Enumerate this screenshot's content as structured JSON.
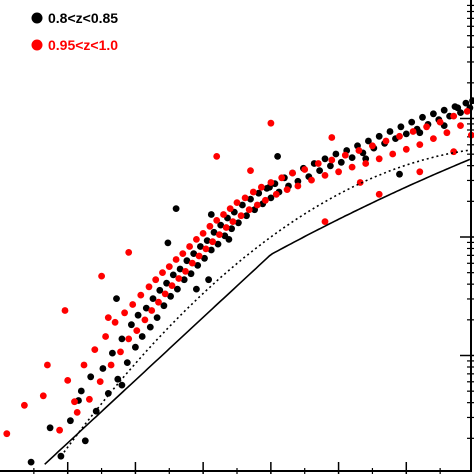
{
  "chart_data": {
    "type": "scatter",
    "title": "",
    "xlabel": "",
    "ylabel": "",
    "xlim": [
      8.5,
      12.0
    ],
    "ylim": [
      -3.0,
      1.0
    ],
    "ylog_decade_ticks": [
      -2,
      -1,
      0
    ],
    "grid": false,
    "legend": {
      "position": "top-left",
      "entries": [
        {
          "label": "0.8<z<0.85",
          "color": "#000000"
        },
        {
          "label": "0.95<z<1.0",
          "color": "#ff0000"
        }
      ]
    },
    "series": [
      {
        "name": "0.8<z<0.85",
        "color": "#000000",
        "marker": "filled-circle",
        "points": [
          [
            8.73,
            -2.9
          ],
          [
            8.87,
            -2.61
          ],
          [
            8.95,
            -2.85
          ],
          [
            9.02,
            -2.55
          ],
          [
            9.08,
            -2.38
          ],
          [
            9.13,
            -2.72
          ],
          [
            9.17,
            -2.18
          ],
          [
            9.21,
            -2.47
          ],
          [
            9.26,
            -2.11
          ],
          [
            9.3,
            -2.32
          ],
          [
            9.33,
            -1.98
          ],
          [
            9.37,
            -2.2
          ],
          [
            9.4,
            -1.86
          ],
          [
            9.44,
            -2.06
          ],
          [
            9.47,
            -1.74
          ],
          [
            9.5,
            -1.93
          ],
          [
            9.52,
            -1.66
          ],
          [
            9.55,
            -1.84
          ],
          [
            9.58,
            -1.6
          ],
          [
            9.61,
            -1.76
          ],
          [
            9.63,
            -1.52
          ],
          [
            9.66,
            -1.68
          ],
          [
            9.68,
            -1.45
          ],
          [
            9.71,
            -1.58
          ],
          [
            9.73,
            -1.39
          ],
          [
            9.76,
            -1.5
          ],
          [
            9.78,
            -1.32
          ],
          [
            9.81,
            -1.44
          ],
          [
            9.83,
            -1.27
          ],
          [
            9.86,
            -1.36
          ],
          [
            9.88,
            -1.2
          ],
          [
            9.91,
            -1.31
          ],
          [
            9.93,
            -1.14
          ],
          [
            9.96,
            -1.24
          ],
          [
            9.98,
            -1.08
          ],
          [
            10.01,
            -1.18
          ],
          [
            10.03,
            -1.03
          ],
          [
            10.06,
            -1.11
          ],
          [
            10.08,
            -0.96
          ],
          [
            10.11,
            -1.06
          ],
          [
            10.13,
            -0.9
          ],
          [
            10.16,
            -0.99
          ],
          [
            10.18,
            -0.84
          ],
          [
            10.21,
            -0.93
          ],
          [
            10.23,
            -0.79
          ],
          [
            10.26,
            -0.88
          ],
          [
            10.29,
            -0.73
          ],
          [
            10.32,
            -0.82
          ],
          [
            10.35,
            -0.68
          ],
          [
            10.38,
            -0.77
          ],
          [
            10.41,
            -0.63
          ],
          [
            10.44,
            -0.72
          ],
          [
            10.47,
            -0.59
          ],
          [
            10.5,
            -0.67
          ],
          [
            10.53,
            -0.55
          ],
          [
            10.56,
            -0.62
          ],
          [
            10.6,
            -0.5
          ],
          [
            10.63,
            -0.57
          ],
          [
            10.66,
            -0.46
          ],
          [
            10.7,
            -0.53
          ],
          [
            10.74,
            -0.42
          ],
          [
            10.78,
            -0.49
          ],
          [
            10.82,
            -0.38
          ],
          [
            10.86,
            -0.44
          ],
          [
            10.9,
            -0.34
          ],
          [
            10.94,
            -0.4
          ],
          [
            10.98,
            -0.3
          ],
          [
            11.02,
            -0.37
          ],
          [
            11.06,
            -0.27
          ],
          [
            11.1,
            -0.33
          ],
          [
            11.14,
            -0.23
          ],
          [
            11.18,
            -0.29
          ],
          [
            11.22,
            -0.19
          ],
          [
            11.26,
            -0.25
          ],
          [
            11.3,
            -0.15
          ],
          [
            11.34,
            -0.21
          ],
          [
            11.38,
            -0.11
          ],
          [
            11.42,
            -0.17
          ],
          [
            11.46,
            -0.07
          ],
          [
            11.5,
            -0.13
          ],
          [
            11.54,
            -0.03
          ],
          [
            11.58,
            -0.09
          ],
          [
            11.62,
            0.01
          ],
          [
            11.66,
            -0.05
          ],
          [
            11.7,
            0.04
          ],
          [
            11.74,
            -0.01
          ],
          [
            11.78,
            0.07
          ],
          [
            11.82,
            0.02
          ],
          [
            11.86,
            0.1
          ],
          [
            11.9,
            0.05
          ],
          [
            11.94,
            0.13
          ],
          [
            11.97,
            0.09
          ],
          [
            11.99,
            0.15
          ],
          [
            9.36,
            -1.52
          ],
          [
            9.95,
            -1.44
          ],
          [
            10.06,
            -0.81
          ],
          [
            10.19,
            -1.02
          ],
          [
            9.74,
            -1.05
          ],
          [
            10.55,
            -0.32
          ],
          [
            9.8,
            -0.76
          ],
          [
            11.2,
            -0.34
          ],
          [
            11.45,
            -0.47
          ],
          [
            11.6,
            -0.12
          ],
          [
            10.49,
            -0.58
          ],
          [
            9.1,
            -2.3
          ],
          [
            9.4,
            -2.25
          ],
          [
            11.78,
            -0.06
          ],
          [
            11.88,
            0.09
          ],
          [
            10.04,
            -1.36
          ]
        ]
      },
      {
        "name": "0.95<z<1.0",
        "color": "#ff0000",
        "marker": "filled-circle",
        "points": [
          [
            8.55,
            -2.66
          ],
          [
            8.68,
            -2.42
          ],
          [
            8.82,
            -2.34
          ],
          [
            8.94,
            -2.63
          ],
          [
            9.0,
            -2.21
          ],
          [
            9.07,
            -2.48
          ],
          [
            9.12,
            -2.08
          ],
          [
            9.16,
            -2.37
          ],
          [
            9.2,
            -1.95
          ],
          [
            9.24,
            -2.22
          ],
          [
            9.28,
            -1.84
          ],
          [
            9.32,
            -2.08
          ],
          [
            9.35,
            -1.72
          ],
          [
            9.39,
            -1.97
          ],
          [
            9.42,
            -1.64
          ],
          [
            9.45,
            -1.86
          ],
          [
            9.48,
            -1.57
          ],
          [
            9.51,
            -1.79
          ],
          [
            9.54,
            -1.49
          ],
          [
            9.57,
            -1.7
          ],
          [
            9.6,
            -1.42
          ],
          [
            9.62,
            -1.62
          ],
          [
            9.65,
            -1.36
          ],
          [
            9.67,
            -1.55
          ],
          [
            9.7,
            -1.3
          ],
          [
            9.72,
            -1.48
          ],
          [
            9.75,
            -1.25
          ],
          [
            9.77,
            -1.41
          ],
          [
            9.8,
            -1.19
          ],
          [
            9.82,
            -1.35
          ],
          [
            9.85,
            -1.14
          ],
          [
            9.87,
            -1.29
          ],
          [
            9.9,
            -1.08
          ],
          [
            9.92,
            -1.22
          ],
          [
            9.95,
            -1.02
          ],
          [
            9.97,
            -1.16
          ],
          [
            10.0,
            -0.97
          ],
          [
            10.02,
            -1.1
          ],
          [
            10.05,
            -0.91
          ],
          [
            10.07,
            -1.04
          ],
          [
            10.1,
            -0.86
          ],
          [
            10.12,
            -0.98
          ],
          [
            10.15,
            -0.81
          ],
          [
            10.17,
            -0.92
          ],
          [
            10.2,
            -0.76
          ],
          [
            10.22,
            -0.87
          ],
          [
            10.25,
            -0.71
          ],
          [
            10.28,
            -0.82
          ],
          [
            10.31,
            -0.67
          ],
          [
            10.34,
            -0.77
          ],
          [
            10.37,
            -0.62
          ],
          [
            10.4,
            -0.73
          ],
          [
            10.43,
            -0.58
          ],
          [
            10.46,
            -0.69
          ],
          [
            10.5,
            -0.54
          ],
          [
            10.54,
            -0.64
          ],
          [
            10.58,
            -0.5
          ],
          [
            10.62,
            -0.6
          ],
          [
            10.66,
            -0.46
          ],
          [
            10.7,
            -0.57
          ],
          [
            10.75,
            -0.43
          ],
          [
            10.8,
            -0.52
          ],
          [
            10.85,
            -0.38
          ],
          [
            10.9,
            -0.48
          ],
          [
            10.95,
            -0.35
          ],
          [
            11.0,
            -0.45
          ],
          [
            11.05,
            -0.31
          ],
          [
            11.1,
            -0.41
          ],
          [
            11.15,
            -0.27
          ],
          [
            11.2,
            -0.38
          ],
          [
            11.25,
            -0.23
          ],
          [
            11.3,
            -0.34
          ],
          [
            11.35,
            -0.19
          ],
          [
            11.4,
            -0.3
          ],
          [
            11.45,
            -0.15
          ],
          [
            11.5,
            -0.26
          ],
          [
            11.55,
            -0.11
          ],
          [
            11.6,
            -0.22
          ],
          [
            11.65,
            -0.07
          ],
          [
            11.7,
            -0.17
          ],
          [
            11.75,
            -0.03
          ],
          [
            11.8,
            -0.12
          ],
          [
            11.85,
            0.02
          ],
          [
            11.9,
            -0.06
          ],
          [
            11.95,
            0.06
          ],
          [
            8.85,
            -2.08
          ],
          [
            9.05,
            -2.39
          ],
          [
            9.25,
            -1.33
          ],
          [
            9.45,
            -1.13
          ],
          [
            10.35,
            -0.44
          ],
          [
            10.1,
            -0.32
          ],
          [
            10.5,
            -0.04
          ],
          [
            10.95,
            -0.16
          ],
          [
            11.16,
            -0.54
          ],
          [
            11.3,
            -0.64
          ],
          [
            11.6,
            -0.45
          ],
          [
            11.85,
            -0.28
          ],
          [
            11.98,
            -0.14
          ],
          [
            8.98,
            -1.62
          ],
          [
            9.3,
            -1.68
          ],
          [
            10.9,
            -0.87
          ]
        ]
      }
    ],
    "fit_lines": [
      {
        "style": "solid",
        "color": "#000000"
      },
      {
        "style": "dotted",
        "color": "#000000"
      }
    ]
  }
}
